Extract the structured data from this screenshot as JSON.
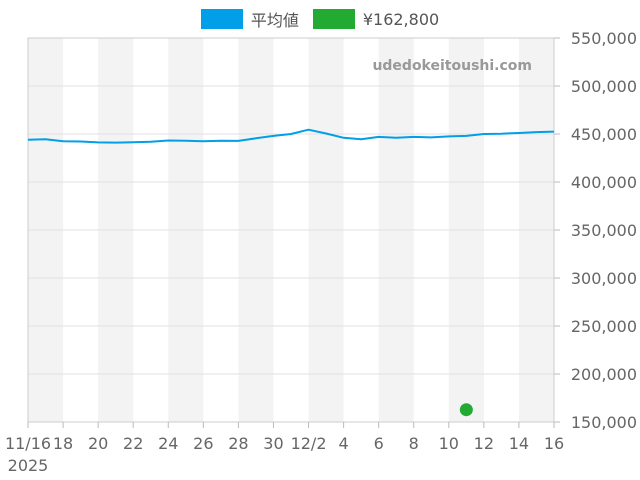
{
  "legend": [
    {
      "label": "平均値",
      "color": "#009fe8"
    },
    {
      "label": "¥162,800",
      "color": "#22aa33"
    }
  ],
  "watermark": "udedokeitoushi.com",
  "chart_data": {
    "type": "line",
    "x_start_date": "2025-11-16",
    "x_end_date": "2025-12-16",
    "x_tick_labels": [
      {
        "date": "2025-11-16",
        "label": "11/16",
        "sub": "2025"
      },
      {
        "date": "2025-11-18",
        "label": "18"
      },
      {
        "date": "2025-11-20",
        "label": "20"
      },
      {
        "date": "2025-11-22",
        "label": "22"
      },
      {
        "date": "2025-11-24",
        "label": "24"
      },
      {
        "date": "2025-11-26",
        "label": "26"
      },
      {
        "date": "2025-11-28",
        "label": "28"
      },
      {
        "date": "2025-11-30",
        "label": "30"
      },
      {
        "date": "2025-12-02",
        "label": "12/2"
      },
      {
        "date": "2025-12-04",
        "label": "4"
      },
      {
        "date": "2025-12-06",
        "label": "6"
      },
      {
        "date": "2025-12-08",
        "label": "8"
      },
      {
        "date": "2025-12-10",
        "label": "10"
      },
      {
        "date": "2025-12-12",
        "label": "12"
      },
      {
        "date": "2025-12-14",
        "label": "14"
      },
      {
        "date": "2025-12-16",
        "label": "16"
      }
    ],
    "ylim": [
      150000,
      550000
    ],
    "y_ticks": [
      {
        "value": 150000,
        "label": "150,000"
      },
      {
        "value": 200000,
        "label": "200,000"
      },
      {
        "value": 250000,
        "label": "250,000"
      },
      {
        "value": 300000,
        "label": "300,000"
      },
      {
        "value": 350000,
        "label": "350,000"
      },
      {
        "value": 400000,
        "label": "400,000"
      },
      {
        "value": 450000,
        "label": "450,000"
      },
      {
        "value": 500000,
        "label": "500,000"
      },
      {
        "value": 550000,
        "label": "550,000"
      }
    ],
    "grid": true,
    "legend_position": "top-center",
    "series": [
      {
        "name": "平均値",
        "color": "#009fe8",
        "kind": "line",
        "points": [
          {
            "x": "2025-11-16",
            "y": 444000
          },
          {
            "x": "2025-11-17",
            "y": 444500
          },
          {
            "x": "2025-11-18",
            "y": 442500
          },
          {
            "x": "2025-11-19",
            "y": 442200
          },
          {
            "x": "2025-11-20",
            "y": 441300
          },
          {
            "x": "2025-11-21",
            "y": 441000
          },
          {
            "x": "2025-11-22",
            "y": 441500
          },
          {
            "x": "2025-11-23",
            "y": 442000
          },
          {
            "x": "2025-11-24",
            "y": 443200
          },
          {
            "x": "2025-11-25",
            "y": 443000
          },
          {
            "x": "2025-11-26",
            "y": 442500
          },
          {
            "x": "2025-11-27",
            "y": 443000
          },
          {
            "x": "2025-11-28",
            "y": 442800
          },
          {
            "x": "2025-11-29",
            "y": 445500
          },
          {
            "x": "2025-11-30",
            "y": 448000
          },
          {
            "x": "2025-12-01",
            "y": 450000
          },
          {
            "x": "2025-12-02",
            "y": 454500
          },
          {
            "x": "2025-12-03",
            "y": 450500
          },
          {
            "x": "2025-12-04",
            "y": 446000
          },
          {
            "x": "2025-12-05",
            "y": 444500
          },
          {
            "x": "2025-12-06",
            "y": 447000
          },
          {
            "x": "2025-12-07",
            "y": 446000
          },
          {
            "x": "2025-12-08",
            "y": 447000
          },
          {
            "x": "2025-12-09",
            "y": 446500
          },
          {
            "x": "2025-12-10",
            "y": 447500
          },
          {
            "x": "2025-12-11",
            "y": 448000
          },
          {
            "x": "2025-12-12",
            "y": 450000
          },
          {
            "x": "2025-12-13",
            "y": 450300
          },
          {
            "x": "2025-12-14",
            "y": 451000
          },
          {
            "x": "2025-12-15",
            "y": 452000
          },
          {
            "x": "2025-12-16",
            "y": 452500
          }
        ]
      },
      {
        "name": "¥162,800",
        "color": "#22aa33",
        "kind": "point",
        "points": [
          {
            "x": "2025-12-11",
            "y": 162800
          }
        ]
      }
    ]
  }
}
